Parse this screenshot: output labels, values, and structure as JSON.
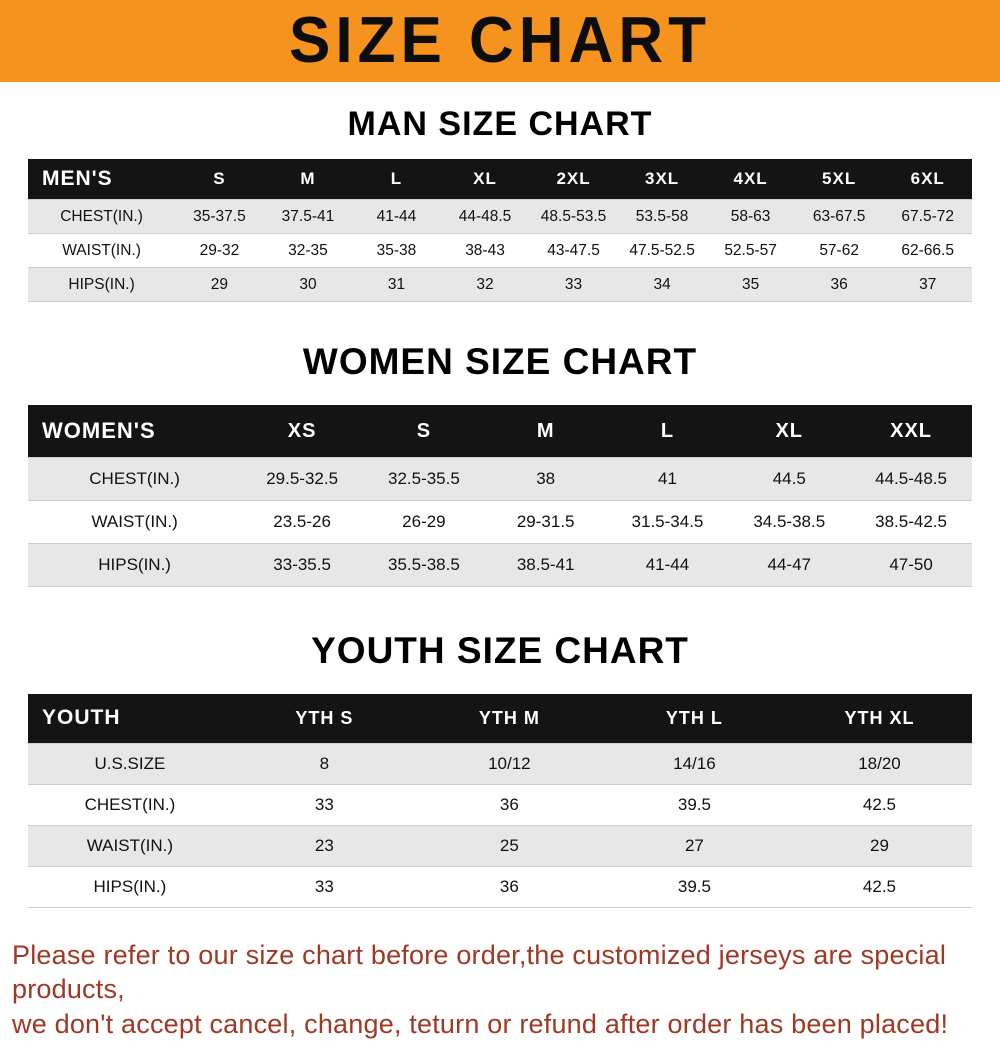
{
  "banner": {
    "title": "SIZE CHART"
  },
  "men": {
    "heading": "MAN SIZE CHART",
    "table": {
      "header": [
        "MEN'S",
        "S",
        "M",
        "L",
        "XL",
        "2XL",
        "3XL",
        "4XL",
        "5XL",
        "6XL"
      ],
      "rows": [
        [
          "CHEST(IN.)",
          "35-37.5",
          "37.5-41",
          "41-44",
          "44-48.5",
          "48.5-53.5",
          "53.5-58",
          "58-63",
          "63-67.5",
          "67.5-72"
        ],
        [
          "WAIST(IN.)",
          "29-32",
          "32-35",
          "35-38",
          "38-43",
          "43-47.5",
          "47.5-52.5",
          "52.5-57",
          "57-62",
          "62-66.5"
        ],
        [
          "HIPS(IN.)",
          "29",
          "30",
          "31",
          "32",
          "33",
          "34",
          "35",
          "36",
          "37"
        ]
      ]
    }
  },
  "women": {
    "heading": "WOMEN SIZE CHART",
    "table": {
      "header": [
        "WOMEN'S",
        "XS",
        "S",
        "M",
        "L",
        "XL",
        "XXL"
      ],
      "rows": [
        [
          "CHEST(IN.)",
          "29.5-32.5",
          "32.5-35.5",
          "38",
          "41",
          "44.5",
          "44.5-48.5"
        ],
        [
          "WAIST(IN.)",
          "23.5-26",
          "26-29",
          "29-31.5",
          "31.5-34.5",
          "34.5-38.5",
          "38.5-42.5"
        ],
        [
          "HIPS(IN.)",
          "33-35.5",
          "35.5-38.5",
          "38.5-41",
          "41-44",
          "44-47",
          "47-50"
        ]
      ]
    }
  },
  "youth": {
    "heading": "YOUTH SIZE CHART",
    "table": {
      "header": [
        "YOUTH",
        "YTH S",
        "YTH M",
        "YTH L",
        "YTH XL"
      ],
      "rows": [
        [
          "U.S.SIZE",
          "8",
          "10/12",
          "14/16",
          "18/20"
        ],
        [
          "CHEST(IN.)",
          "33",
          "36",
          "39.5",
          "42.5"
        ],
        [
          "WAIST(IN.)",
          "23",
          "25",
          "27",
          "29"
        ],
        [
          "HIPS(IN.)",
          "33",
          "36",
          "39.5",
          "42.5"
        ]
      ]
    }
  },
  "footer": {
    "line1": "Please refer to our size chart before order,the customized jerseys are special products,",
    "line2": "we don't accept cancel, change, teturn or refund after order has been placed!"
  },
  "colors": {
    "banner_bg": "#f6921e",
    "table_header_bg": "#141414",
    "stripe_bg": "#e7e7e7",
    "footer_text": "#a03826"
  }
}
